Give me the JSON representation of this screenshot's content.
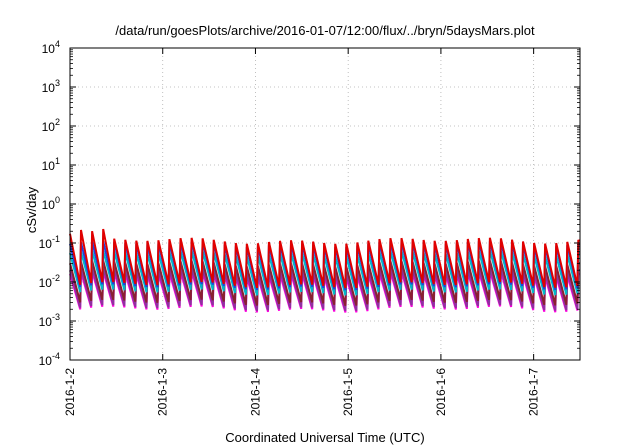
{
  "chart_data": {
    "type": "line",
    "title": "/data/run/goesPlots/archive/2016-01-07/12:00/flux/../bryn/5daysMars.plot",
    "xlabel": "Coordinated Universal Time (UTC)",
    "ylabel": "cSv/day",
    "yscale": "log",
    "ylim": [
      0.0001,
      10000
    ],
    "xlim": [
      "2016-01-02",
      "2016-01-07 12:00"
    ],
    "x_ticks": [
      "2016-1-2",
      "2016-1-3",
      "2016-1-4",
      "2016-1-5",
      "2016-1-6",
      "2016-1-7"
    ],
    "y_ticks": [
      {
        "value": 0.0001,
        "base": "10",
        "exp": "-4"
      },
      {
        "value": 0.001,
        "base": "10",
        "exp": "-3"
      },
      {
        "value": 0.01,
        "base": "10",
        "exp": "-2"
      },
      {
        "value": 0.1,
        "base": "10",
        "exp": "-1"
      },
      {
        "value": 1,
        "base": "10",
        "exp": "0"
      },
      {
        "value": 10,
        "base": "10",
        "exp": "1"
      },
      {
        "value": 100,
        "base": "10",
        "exp": "2"
      },
      {
        "value": 1000,
        "base": "10",
        "exp": "3"
      },
      {
        "value": 10000,
        "base": "10",
        "exp": "4"
      }
    ],
    "grid": true,
    "legend": "none",
    "sawtooth_period_hours": 2.86,
    "series": [
      {
        "color": "#e00000",
        "peak": 0.115,
        "trough": 0.0085
      },
      {
        "color": "#2040e0",
        "peak": 0.095,
        "trough": 0.0075
      },
      {
        "color": "#00b8c8",
        "peak": 0.055,
        "trough": 0.0055
      },
      {
        "color": "#8a2030",
        "peak": 0.03,
        "trough": 0.003
      },
      {
        "color": "#9030a0",
        "peak": 0.02,
        "trough": 0.0022
      },
      {
        "color": "#ff00e0",
        "peak": 0.016,
        "trough": 0.002
      }
    ]
  }
}
